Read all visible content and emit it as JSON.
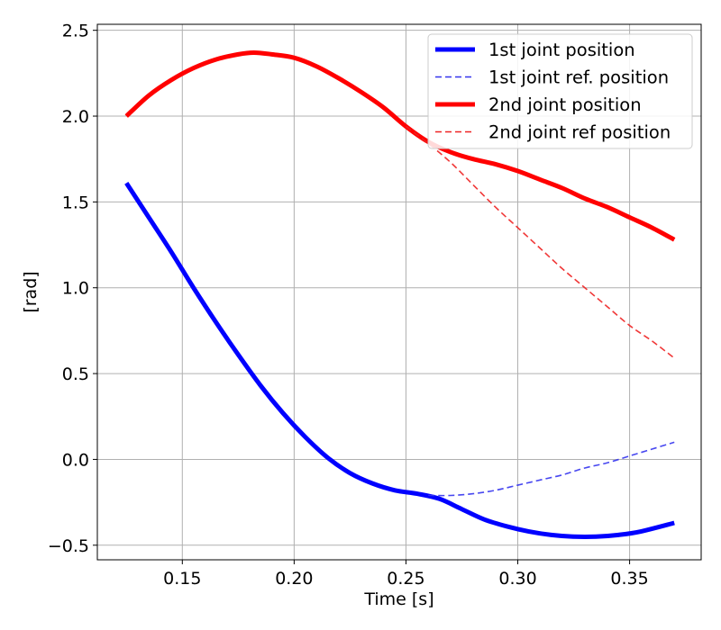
{
  "chart_data": {
    "type": "line",
    "xlabel": "Time [s]",
    "ylabel": "[rad]",
    "xlim": [
      0.112,
      0.382
    ],
    "ylim": [
      -0.585,
      2.535
    ],
    "xticks": [
      0.15,
      0.2,
      0.25,
      0.3,
      0.35
    ],
    "xtick_labels": [
      "0.15",
      "0.20",
      "0.25",
      "0.30",
      "0.35"
    ],
    "yticks": [
      -0.5,
      0.0,
      0.5,
      1.0,
      1.5,
      2.0,
      2.5
    ],
    "ytick_labels": [
      "−0.5",
      "0.0",
      "0.5",
      "1.0",
      "1.5",
      "2.0",
      "2.5"
    ],
    "grid": true,
    "legend_position": "top-right",
    "series": [
      {
        "name": "1st joint position",
        "color": "#0000ff",
        "style": "solid",
        "x": [
          0.125,
          0.135,
          0.145,
          0.155,
          0.165,
          0.175,
          0.185,
          0.195,
          0.205,
          0.215,
          0.225,
          0.235,
          0.245,
          0.255,
          0.265,
          0.275,
          0.285,
          0.295,
          0.305,
          0.315,
          0.325,
          0.335,
          0.345,
          0.355,
          0.37
        ],
        "y": [
          1.61,
          1.41,
          1.21,
          1.0,
          0.8,
          0.61,
          0.43,
          0.27,
          0.13,
          0.01,
          -0.08,
          -0.14,
          -0.18,
          -0.2,
          -0.23,
          -0.29,
          -0.35,
          -0.39,
          -0.42,
          -0.44,
          -0.45,
          -0.45,
          -0.44,
          -0.42,
          -0.37
        ]
      },
      {
        "name": "1st joint ref. position",
        "color": "#3333ee",
        "style": "dashed",
        "x": [
          0.26,
          0.27,
          0.28,
          0.29,
          0.3,
          0.31,
          0.32,
          0.33,
          0.34,
          0.35,
          0.36,
          0.37
        ],
        "y": [
          -0.21,
          -0.21,
          -0.2,
          -0.18,
          -0.15,
          -0.12,
          -0.09,
          -0.05,
          -0.02,
          0.02,
          0.06,
          0.1
        ]
      },
      {
        "name": "2nd joint position",
        "color": "#ff0000",
        "style": "solid",
        "x": [
          0.125,
          0.135,
          0.145,
          0.155,
          0.165,
          0.175,
          0.182,
          0.19,
          0.2,
          0.21,
          0.22,
          0.23,
          0.24,
          0.25,
          0.26,
          0.27,
          0.28,
          0.29,
          0.3,
          0.31,
          0.32,
          0.33,
          0.34,
          0.35,
          0.36,
          0.37
        ],
        "y": [
          2.0,
          2.12,
          2.21,
          2.28,
          2.33,
          2.36,
          2.37,
          2.36,
          2.34,
          2.29,
          2.22,
          2.14,
          2.05,
          1.94,
          1.85,
          1.79,
          1.75,
          1.72,
          1.68,
          1.63,
          1.58,
          1.52,
          1.47,
          1.41,
          1.35,
          1.28
        ]
      },
      {
        "name": "2nd joint ref position",
        "color": "#ee2222",
        "style": "dashed",
        "x": [
          0.25,
          0.26,
          0.27,
          0.28,
          0.29,
          0.3,
          0.31,
          0.32,
          0.33,
          0.34,
          0.35,
          0.36,
          0.37
        ],
        "y": [
          1.94,
          1.84,
          1.73,
          1.6,
          1.47,
          1.35,
          1.23,
          1.11,
          1.0,
          0.89,
          0.78,
          0.69,
          0.59
        ]
      }
    ]
  }
}
